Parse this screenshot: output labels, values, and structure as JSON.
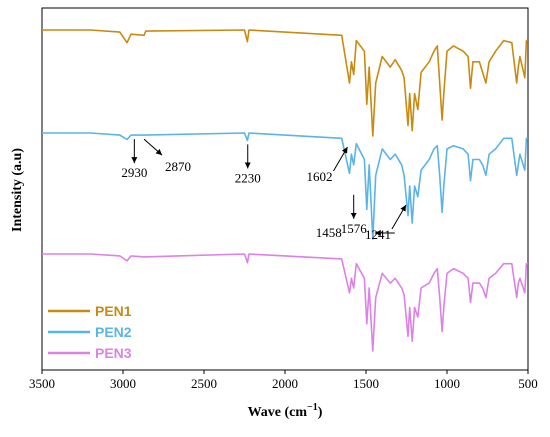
{
  "chart_data": {
    "type": "line",
    "xlabel": "Wave (cm",
    "xlabel_sup": "−1",
    "xlabel_end": ")",
    "ylabel": "Intensity (a.u)",
    "xlim": [
      3500,
      500
    ],
    "x_ticks": [
      "3500",
      "3000",
      "2500",
      "2000",
      "1500",
      "1000",
      "500"
    ],
    "grid": false,
    "legend_position": "bottom-left",
    "legend": [
      "PEN1",
      "PEN2",
      "PEN3"
    ],
    "series": [
      {
        "name": "PEN1",
        "color": "#C98A12",
        "points": [
          [
            3500,
            0
          ],
          [
            3200,
            0
          ],
          [
            3020,
            0.02
          ],
          [
            2975,
            0.12
          ],
          [
            2950,
            0.04
          ],
          [
            2870,
            0.05
          ],
          [
            2860,
            0.01
          ],
          [
            2250,
            0
          ],
          [
            2232,
            0.11
          ],
          [
            2222,
            0
          ],
          [
            1650,
            0.05
          ],
          [
            1602,
            0.5
          ],
          [
            1590,
            0.3
          ],
          [
            1576,
            0.42
          ],
          [
            1560,
            0.1
          ],
          [
            1510,
            0.2
          ],
          [
            1495,
            0.7
          ],
          [
            1480,
            0.35
          ],
          [
            1458,
            1.0
          ],
          [
            1440,
            0.5
          ],
          [
            1400,
            0.25
          ],
          [
            1350,
            0.35
          ],
          [
            1320,
            0.28
          ],
          [
            1280,
            0.38
          ],
          [
            1265,
            0.45
          ],
          [
            1241,
            0.9
          ],
          [
            1230,
            0.6
          ],
          [
            1215,
            0.95
          ],
          [
            1200,
            0.6
          ],
          [
            1180,
            0.75
          ],
          [
            1160,
            0.4
          ],
          [
            1110,
            0.3
          ],
          [
            1080,
            0.2
          ],
          [
            1060,
            0.15
          ],
          [
            1045,
            0.5
          ],
          [
            1030,
            0.85
          ],
          [
            1020,
            0.6
          ],
          [
            1000,
            0.2
          ],
          [
            960,
            0.15
          ],
          [
            900,
            0.2
          ],
          [
            870,
            0.25
          ],
          [
            855,
            0.55
          ],
          [
            840,
            0.3
          ],
          [
            800,
            0.3
          ],
          [
            780,
            0.4
          ],
          [
            760,
            0.5
          ],
          [
            740,
            0.3
          ],
          [
            700,
            0.2
          ],
          [
            650,
            0.1
          ],
          [
            600,
            0.12
          ],
          [
            570,
            0.5
          ],
          [
            560,
            0.35
          ],
          [
            550,
            0.25
          ],
          [
            520,
            0.45
          ],
          [
            510,
            0.1
          ],
          [
            500,
            0.1
          ]
        ]
      },
      {
        "name": "PEN2",
        "color": "#5BB4E6",
        "points": [
          [
            3500,
            0
          ],
          [
            3200,
            0
          ],
          [
            3020,
            0.02
          ],
          [
            2975,
            0.06
          ],
          [
            2950,
            0.02
          ],
          [
            2870,
            0.02
          ],
          [
            2250,
            0
          ],
          [
            2232,
            0.07
          ],
          [
            2222,
            0
          ],
          [
            1650,
            0.05
          ],
          [
            1602,
            0.38
          ],
          [
            1590,
            0.2
          ],
          [
            1576,
            0.3
          ],
          [
            1560,
            0.1
          ],
          [
            1510,
            0.25
          ],
          [
            1495,
            0.72
          ],
          [
            1480,
            0.3
          ],
          [
            1458,
            1.0
          ],
          [
            1440,
            0.4
          ],
          [
            1400,
            0.15
          ],
          [
            1350,
            0.25
          ],
          [
            1320,
            0.2
          ],
          [
            1280,
            0.3
          ],
          [
            1265,
            0.4
          ],
          [
            1241,
            0.78
          ],
          [
            1230,
            0.5
          ],
          [
            1215,
            0.85
          ],
          [
            1200,
            0.5
          ],
          [
            1180,
            0.6
          ],
          [
            1160,
            0.35
          ],
          [
            1110,
            0.25
          ],
          [
            1080,
            0.15
          ],
          [
            1060,
            0.12
          ],
          [
            1045,
            0.4
          ],
          [
            1030,
            0.75
          ],
          [
            1020,
            0.5
          ],
          [
            1000,
            0.15
          ],
          [
            960,
            0.12
          ],
          [
            900,
            0.15
          ],
          [
            870,
            0.2
          ],
          [
            855,
            0.45
          ],
          [
            840,
            0.25
          ],
          [
            800,
            0.25
          ],
          [
            780,
            0.3
          ],
          [
            760,
            0.4
          ],
          [
            740,
            0.2
          ],
          [
            700,
            0.15
          ],
          [
            650,
            0.05
          ],
          [
            600,
            0.05
          ],
          [
            570,
            0.4
          ],
          [
            560,
            0.3
          ],
          [
            550,
            0.2
          ],
          [
            520,
            0.35
          ],
          [
            510,
            0.05
          ],
          [
            500,
            0.05
          ]
        ]
      },
      {
        "name": "PEN3",
        "color": "#DC82E6",
        "points": [
          [
            3500,
            0
          ],
          [
            3200,
            0
          ],
          [
            3020,
            0.02
          ],
          [
            2975,
            0.07
          ],
          [
            2950,
            0.02
          ],
          [
            2870,
            0.03
          ],
          [
            2250,
            0
          ],
          [
            2232,
            0.09
          ],
          [
            2222,
            0
          ],
          [
            1650,
            0.05
          ],
          [
            1602,
            0.4
          ],
          [
            1590,
            0.25
          ],
          [
            1576,
            0.35
          ],
          [
            1560,
            0.1
          ],
          [
            1510,
            0.25
          ],
          [
            1495,
            0.72
          ],
          [
            1480,
            0.35
          ],
          [
            1458,
            1.0
          ],
          [
            1440,
            0.45
          ],
          [
            1400,
            0.2
          ],
          [
            1350,
            0.3
          ],
          [
            1320,
            0.25
          ],
          [
            1280,
            0.35
          ],
          [
            1265,
            0.42
          ],
          [
            1241,
            0.85
          ],
          [
            1230,
            0.55
          ],
          [
            1215,
            0.9
          ],
          [
            1200,
            0.55
          ],
          [
            1180,
            0.65
          ],
          [
            1160,
            0.35
          ],
          [
            1110,
            0.3
          ],
          [
            1080,
            0.2
          ],
          [
            1060,
            0.15
          ],
          [
            1045,
            0.45
          ],
          [
            1030,
            0.8
          ],
          [
            1020,
            0.55
          ],
          [
            1000,
            0.2
          ],
          [
            960,
            0.15
          ],
          [
            900,
            0.2
          ],
          [
            870,
            0.25
          ],
          [
            855,
            0.5
          ],
          [
            840,
            0.3
          ],
          [
            800,
            0.3
          ],
          [
            780,
            0.35
          ],
          [
            760,
            0.45
          ],
          [
            740,
            0.25
          ],
          [
            700,
            0.2
          ],
          [
            650,
            0.1
          ],
          [
            600,
            0.1
          ],
          [
            570,
            0.45
          ],
          [
            560,
            0.3
          ],
          [
            550,
            0.25
          ],
          [
            520,
            0.4
          ],
          [
            510,
            0.1
          ],
          [
            500,
            0.1
          ]
        ]
      }
    ],
    "annotations": [
      {
        "text": "2930",
        "series": "PEN2",
        "x": 2930,
        "direction": "down"
      },
      {
        "text": "2870",
        "series": "PEN2",
        "x": 2870,
        "direction": "down-right"
      },
      {
        "text": "2230",
        "series": "PEN2",
        "x": 2230,
        "direction": "down"
      },
      {
        "text": "1602",
        "series": "PEN2",
        "x": 1602,
        "direction": "down-left"
      },
      {
        "text": "1576",
        "series": "PEN2",
        "x": 1576,
        "direction": "down"
      },
      {
        "text": "1458",
        "series": "PEN2",
        "x": 1458,
        "direction": "left"
      },
      {
        "text": "1241",
        "series": "PEN2",
        "x": 1241,
        "direction": "down-left"
      }
    ]
  }
}
